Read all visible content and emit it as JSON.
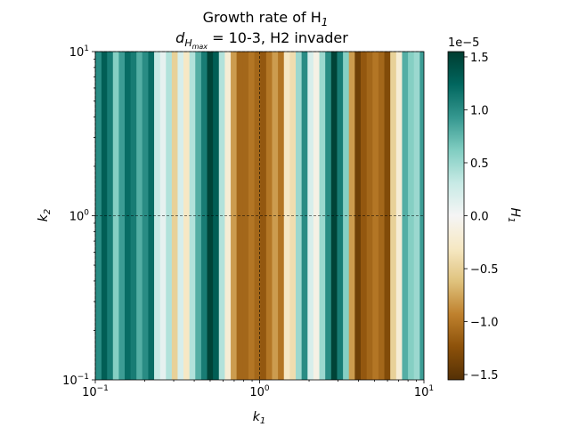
{
  "chart_data": {
    "type": "heatmap",
    "title_line1": "Growth rate of H",
    "title_line1_sub": "1",
    "title_line2_prefix": "d",
    "title_line2_sub": "H",
    "title_line2_subsub": "max",
    "title_line2_suffix": " = 10-3, H2 invader",
    "xlabel": "k",
    "xlabel_sub": "1",
    "ylabel": "k",
    "ylabel_sub": "2",
    "xscale": "log",
    "yscale": "log",
    "xlim": [
      0.1,
      10
    ],
    "ylim": [
      0.1,
      10
    ],
    "x_ticks": [
      {
        "value": 0.1,
        "base": "10",
        "exp": "−1"
      },
      {
        "value": 1,
        "base": "10",
        "exp": "0"
      },
      {
        "value": 10,
        "base": "10",
        "exp": "1"
      }
    ],
    "y_ticks": [
      {
        "value": 0.1,
        "base": "10",
        "exp": "−1"
      },
      {
        "value": 1,
        "base": "10",
        "exp": "0"
      },
      {
        "value": 10,
        "base": "10",
        "exp": "1"
      }
    ],
    "reference_lines": {
      "x": 1,
      "y": 1,
      "style": "dashed",
      "grid": "dashed black at k1=1 and k2=1"
    },
    "colorbar": {
      "label": "H",
      "label_sub": "1",
      "offset_text": "1e−5",
      "ticks": [
        {
          "value": 1.5,
          "label": "1.5"
        },
        {
          "value": 1.0,
          "label": "1.0"
        },
        {
          "value": 0.5,
          "label": "0.5"
        },
        {
          "value": 0.0,
          "label": "0.0"
        },
        {
          "value": -0.5,
          "label": "−0.5"
        },
        {
          "value": -1.0,
          "label": "−1.0"
        },
        {
          "value": -1.5,
          "label": "−1.5"
        }
      ],
      "vmin": -1.55,
      "vmax": 1.55,
      "colormap": "BrBG"
    },
    "k1_values": [
      0.1,
      0.109,
      0.118,
      0.128,
      0.139,
      0.151,
      0.164,
      0.178,
      0.193,
      0.21,
      0.228,
      0.248,
      0.269,
      0.292,
      0.317,
      0.344,
      0.374,
      0.406,
      0.441,
      0.479,
      0.52,
      0.565,
      0.614,
      0.667,
      0.724,
      0.787,
      0.855,
      0.929,
      1.009,
      1.096,
      1.19,
      1.293,
      1.405,
      1.526,
      1.658,
      1.801,
      1.957,
      2.125,
      2.309,
      2.508,
      2.725,
      2.96,
      3.216,
      3.493,
      3.795,
      4.122,
      4.478,
      4.865,
      5.285,
      5.741,
      6.237,
      6.775,
      7.36,
      7.995,
      8.685,
      9.435
    ],
    "h1_values": [
      1.0,
      1.3,
      1.1,
      0.6,
      0.9,
      1.2,
      1.1,
      0.8,
      1.0,
      1.2,
      0.3,
      0.1,
      0.4,
      -0.5,
      0.2,
      -0.3,
      0.4,
      0.8,
      1.1,
      1.5,
      1.3,
      0.4,
      -0.2,
      -0.8,
      -1.1,
      -1.1,
      -1.0,
      -1.1,
      -1.2,
      -1.0,
      -0.8,
      -1.0,
      -0.3,
      -0.4,
      0.5,
      1.0,
      0.2,
      -0.1,
      0.5,
      1.0,
      1.5,
      1.1,
      0.6,
      -0.8,
      -1.4,
      -1.2,
      -1.1,
      -1.0,
      -1.1,
      -1.3,
      -0.5,
      -0.2,
      0.8,
      0.6,
      0.5,
      0.9
    ]
  }
}
